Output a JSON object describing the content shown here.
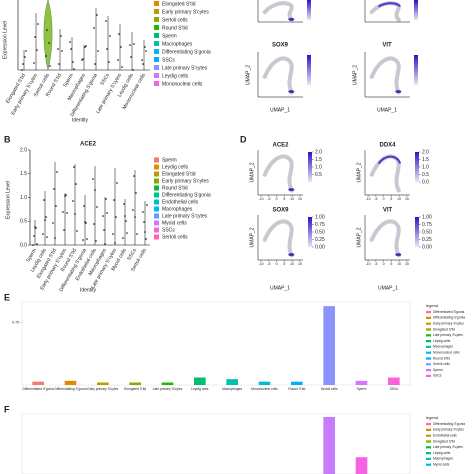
{
  "panel_a": {
    "y_label": "Expression Level",
    "x_label": "Identity",
    "identities": [
      "Elongated S'tid",
      "Early primary S'cytes",
      "Sertoli cells",
      "Round S'tid",
      "Sperm",
      "Macrophages",
      "Differentiating S'gonia",
      "SSCs",
      "Late primary S'cytes",
      "Leydig cells",
      "Mononuclear cells"
    ],
    "colors": [
      "#e18a00",
      "#be9c00",
      "#8cab00",
      "#24b700",
      "#00be70",
      "#00c1ab",
      "#00bbda",
      "#00acfc",
      "#8b93ff",
      "#d575fe",
      "#f962dd"
    ]
  },
  "panel_b": {
    "letter": "B",
    "title": "ACE2",
    "y_label": "Expression Level",
    "x_label": "Identity",
    "ylim": [
      0,
      2
    ],
    "yticks": [
      {
        "value": 0,
        "label": "0.0"
      },
      0.5,
      {
        "value": 1,
        "label": "1.0"
      },
      1.5,
      {
        "value": 2,
        "label": "2.0"
      }
    ],
    "identities": [
      "Sperm",
      "Leydig cells",
      "Elongated S'tid",
      "Early primary S'cytes",
      "Round S'tid",
      "Differentiating S'gonia",
      "Endothelial cells",
      "Macrophages",
      "Late primary S'cytes",
      "Myoid cells",
      "SSCs",
      "Sertoli cells"
    ],
    "colors": [
      "#f8766d",
      "#de8c00",
      "#b79f00",
      "#7cae00",
      "#00ba38",
      "#00c08b",
      "#00bfc4",
      "#00b4f0",
      "#619cff",
      "#c77cff",
      "#f564e3",
      "#ff64b0"
    ]
  },
  "panel_c": {
    "x_label": "UMAP_1",
    "y_label": "UMAP_2",
    "genes": [
      "SOX9",
      "VIT"
    ]
  },
  "panel_d": {
    "letter": "D",
    "x_label": "UMAP_1",
    "y_label": "UMAP_2",
    "xlim": [
      -12,
      17
    ],
    "xticks": [
      -10,
      -5,
      0,
      5,
      10,
      15
    ],
    "plots": [
      {
        "gene": "ACE2",
        "scale_lim": [
          0,
          2
        ],
        "scale_ticks": [
          0.5,
          {
            "value": 1,
            "label": "1.0"
          },
          1.5,
          {
            "value": 2,
            "label": "2.0"
          }
        ]
      },
      {
        "gene": "DDX4",
        "scale_lim": [
          0,
          2
        ],
        "scale_ticks": [
          {
            "value": 0,
            "label": "0.0"
          },
          0.5,
          {
            "value": 1,
            "label": "1.0"
          },
          1.5,
          {
            "value": 2,
            "label": "2.0"
          }
        ]
      },
      {
        "gene": "SOX9",
        "scale_lim": [
          0,
          1
        ],
        "scale_ticks": [
          {
            "value": 0,
            "label": "0.00"
          },
          0.25,
          {
            "value": 0.5,
            "label": "0.50"
          },
          0.75,
          {
            "value": 1,
            "label": "1.00"
          }
        ]
      },
      {
        "gene": "VIT",
        "scale_lim": [
          0,
          1
        ],
        "scale_ticks": [
          {
            "value": 0,
            "label": "0.00"
          },
          0.25,
          {
            "value": 0.5,
            "label": "0.50"
          },
          0.75,
          {
            "value": 1,
            "label": "1.00"
          }
        ]
      }
    ]
  },
  "panel_e": {
    "letter": "E",
    "type": "bar",
    "legend_title": "legend",
    "ylim": [
      0,
      1
    ],
    "yticks": [
      0.75
    ],
    "categories": [
      "Differentiated S'gonia",
      "Differentiating S'gonia",
      "Early primary S'cytes",
      "Elongated S'tid",
      "Late primary S'cytes",
      "Leydig cells",
      "Macrophages",
      "Mononuclear cells",
      "Round S'tid",
      "Sertoli cells",
      "Sperm",
      "SSCs"
    ],
    "values": [
      0.04,
      0.05,
      0.03,
      0.03,
      0.03,
      0.09,
      0.07,
      0.04,
      0.04,
      0.95,
      0.05,
      0.09
    ],
    "colors": [
      "#f8766d",
      "#e18a00",
      "#be9c00",
      "#8cab00",
      "#24b700",
      "#00be70",
      "#00c1ab",
      "#00bbda",
      "#00acfc",
      "#8b93ff",
      "#d575fe",
      "#f962dd"
    ]
  },
  "panel_f": {
    "letter": "F",
    "type": "bar",
    "legend_title": "legend",
    "ylim": [
      0,
      1
    ],
    "legend": [
      "Differentiating S'gonia",
      "Early primary S'cytes",
      "Endothelial cells",
      "Elongated S'tid",
      "Late primary S'cytes",
      "Leydig cells",
      "Macrophages",
      "Myoid cells"
    ],
    "categories": [
      null,
      null,
      null,
      null,
      null,
      null,
      null,
      null,
      null,
      null,
      null,
      null
    ],
    "values": [
      0,
      0,
      0,
      0,
      0,
      0,
      0,
      0,
      0,
      0.95,
      0.28,
      0
    ],
    "colors": [
      "#f8766d",
      "#de8c00",
      "#b79f00",
      "#7cae00",
      "#00ba38",
      "#00c08b",
      "#00bfc4",
      "#00b4f0",
      "#619cff",
      "#c77cff",
      "#f564e3",
      "#ff64b0"
    ]
  }
}
